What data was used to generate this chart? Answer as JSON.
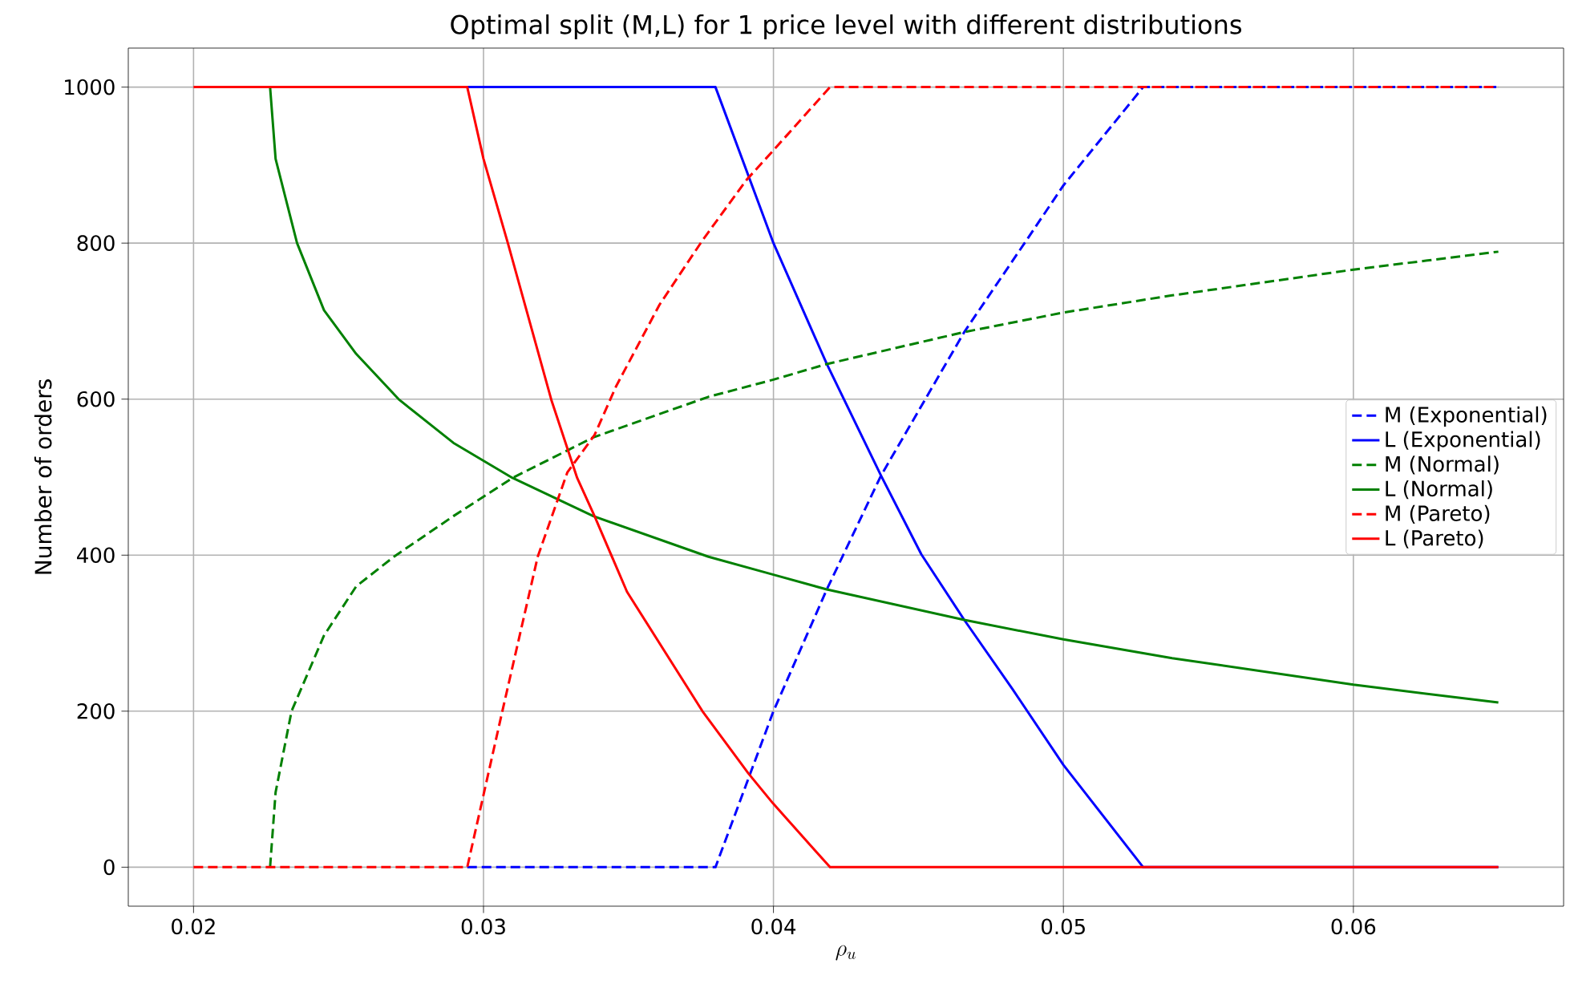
{
  "chart_data": {
    "type": "line",
    "title": "Optimal split (M,L) for 1 price level with different distributions",
    "xlabel": "\\rho_u",
    "ylabel": "Number of orders",
    "xlim": [
      0.01775,
      0.06725
    ],
    "ylim": [
      -50,
      1050
    ],
    "xticks": [
      {
        "value": 0.02,
        "label": "0.02"
      },
      {
        "value": 0.03,
        "label": "0.03"
      },
      {
        "value": 0.04,
        "label": "0.04"
      },
      {
        "value": 0.05,
        "label": "0.05"
      },
      {
        "value": 0.06,
        "label": "0.06"
      }
    ],
    "yticks": [
      0,
      200,
      400,
      600,
      800,
      1000
    ],
    "grid": true,
    "legend": "right",
    "marker": "none",
    "series": [
      {
        "name": "M (Exponential)",
        "color": "#0000ff",
        "line_style": "dashed",
        "x": [
          0.02944,
          0.038,
          0.04,
          0.04184,
          0.04371,
          0.04658,
          0.04866,
          0.05,
          0.05275,
          0.065
        ],
        "values": [
          0,
          0,
          200,
          356,
          502,
          686,
          800,
          874,
          1000,
          1000
        ]
      },
      {
        "name": "L (Exponential)",
        "color": "#0000ff",
        "line_style": "solid",
        "x": [
          0.02944,
          0.038,
          0.04,
          0.04184,
          0.04371,
          0.0451,
          0.04658,
          0.04825,
          0.05,
          0.05275,
          0.065
        ],
        "values": [
          1000,
          1000,
          800,
          645,
          502,
          401,
          317,
          228,
          131,
          0,
          0
        ]
      },
      {
        "name": "M (Normal)",
        "color": "#008000",
        "line_style": "dashed",
        "x": [
          0.02264,
          0.02283,
          0.02338,
          0.0245,
          0.02561,
          0.02691,
          0.02896,
          0.031,
          0.03379,
          0.03776,
          0.04,
          0.04184,
          0.04658,
          0.05,
          0.05375,
          0.06,
          0.065
        ],
        "values": [
          0,
          96,
          200,
          297,
          360,
          398,
          450,
          499,
          551,
          603,
          625,
          645,
          686,
          711,
          733,
          766,
          789
        ]
      },
      {
        "name": "L (Normal)",
        "color": "#008000",
        "line_style": "solid",
        "x": [
          0.02264,
          0.02283,
          0.02357,
          0.0245,
          0.02561,
          0.0271,
          0.02896,
          0.031,
          0.03379,
          0.03776,
          0.04,
          0.04184,
          0.04658,
          0.05,
          0.05375,
          0.06,
          0.065
        ],
        "values": [
          1000,
          908,
          800,
          714,
          658,
          599,
          544,
          499,
          450,
          398,
          375,
          356,
          317,
          292,
          268,
          234,
          211
        ]
      },
      {
        "name": "M (Pareto)",
        "color": "#ff0000",
        "line_style": "dashed",
        "x": [
          0.02,
          0.02944,
          0.03065,
          0.03187,
          0.03289,
          0.03383,
          0.03458,
          0.03607,
          0.03756,
          0.03907,
          0.04,
          0.04195,
          0.065
        ],
        "values": [
          0,
          0,
          200,
          398,
          506,
          554,
          617,
          721,
          804,
          881,
          919,
          1000,
          1000
        ]
      },
      {
        "name": "L (Pareto)",
        "color": "#ff0000",
        "line_style": "solid",
        "x": [
          0.02,
          0.02944,
          0.03,
          0.03084,
          0.03234,
          0.03323,
          0.03383,
          0.03495,
          0.03755,
          0.03914,
          0.03998,
          0.04195,
          0.065
        ],
        "values": [
          1000,
          1000,
          908,
          800,
          599,
          499,
          450,
          353,
          200,
          120,
          82,
          0,
          0
        ]
      }
    ]
  }
}
